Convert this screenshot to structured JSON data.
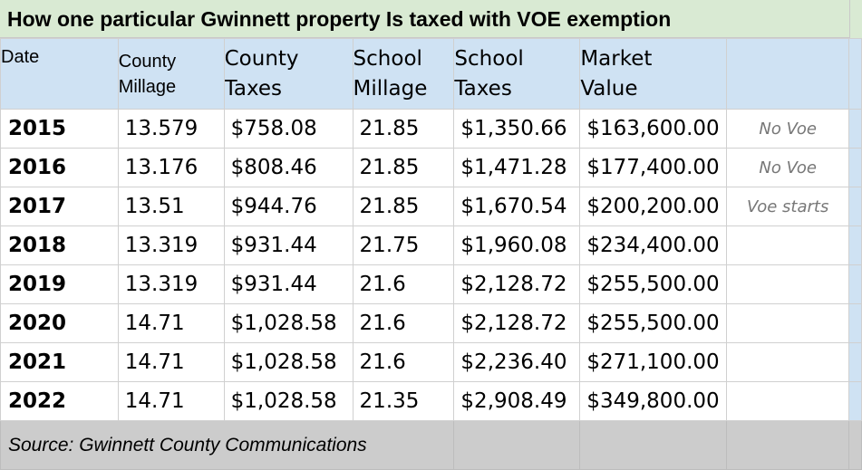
{
  "title": "How one particular Gwinnett property Is taxed with VOE exemption",
  "headers": {
    "date": "Date",
    "county_millage": [
      "County",
      "Millage"
    ],
    "county_taxes": [
      "County",
      "Taxes"
    ],
    "school_millage": [
      "School",
      "Millage"
    ],
    "school_taxes": [
      "School",
      "Taxes"
    ],
    "market_value": [
      "Market",
      "Value"
    ]
  },
  "rows": [
    {
      "year": "2015",
      "county_millage": "13.579",
      "county_taxes": "$758.08",
      "school_millage": "21.85",
      "school_taxes": "$1,350.66",
      "market_value": "$163,600.00",
      "note": "No Voe"
    },
    {
      "year": "2016",
      "county_millage": "13.176",
      "county_taxes": "$808.46",
      "school_millage": "21.85",
      "school_taxes": "$1,471.28",
      "market_value": "$177,400.00",
      "note": "No Voe"
    },
    {
      "year": "2017",
      "county_millage": "13.51",
      "county_taxes": "$944.76",
      "school_millage": "21.85",
      "school_taxes": "$1,670.54",
      "market_value": "$200,200.00",
      "note": "Voe starts"
    },
    {
      "year": "2018",
      "county_millage": "13.319",
      "county_taxes": "$931.44",
      "school_millage": "21.75",
      "school_taxes": "$1,960.08",
      "market_value": "$234,400.00",
      "note": ""
    },
    {
      "year": "2019",
      "county_millage": "13.319",
      "county_taxes": "$931.44",
      "school_millage": "21.6",
      "school_taxes": "$2,128.72",
      "market_value": "$255,500.00",
      "note": ""
    },
    {
      "year": "2020",
      "county_millage": "14.71",
      "county_taxes": "$1,028.58",
      "school_millage": "21.6",
      "school_taxes": "$2,128.72",
      "market_value": "$255,500.00",
      "note": ""
    },
    {
      "year": "2021",
      "county_millage": "14.71",
      "county_taxes": "$1,028.58",
      "school_millage": "21.6",
      "school_taxes": "$2,236.40",
      "market_value": "$271,100.00",
      "note": ""
    },
    {
      "year": "2022",
      "county_millage": "14.71",
      "county_taxes": "$1,028.58",
      "school_millage": "21.35",
      "school_taxes": "$2,908.49",
      "market_value": "$349,800.00",
      "note": ""
    }
  ],
  "source": "Source: Gwinnett County Communications",
  "colors": {
    "title_bg": "#d9ead3",
    "header_bg": "#cfe2f3",
    "footer_bg": "#cccccc",
    "note_text": "#777777",
    "grid_line": "#d0d0d0"
  }
}
